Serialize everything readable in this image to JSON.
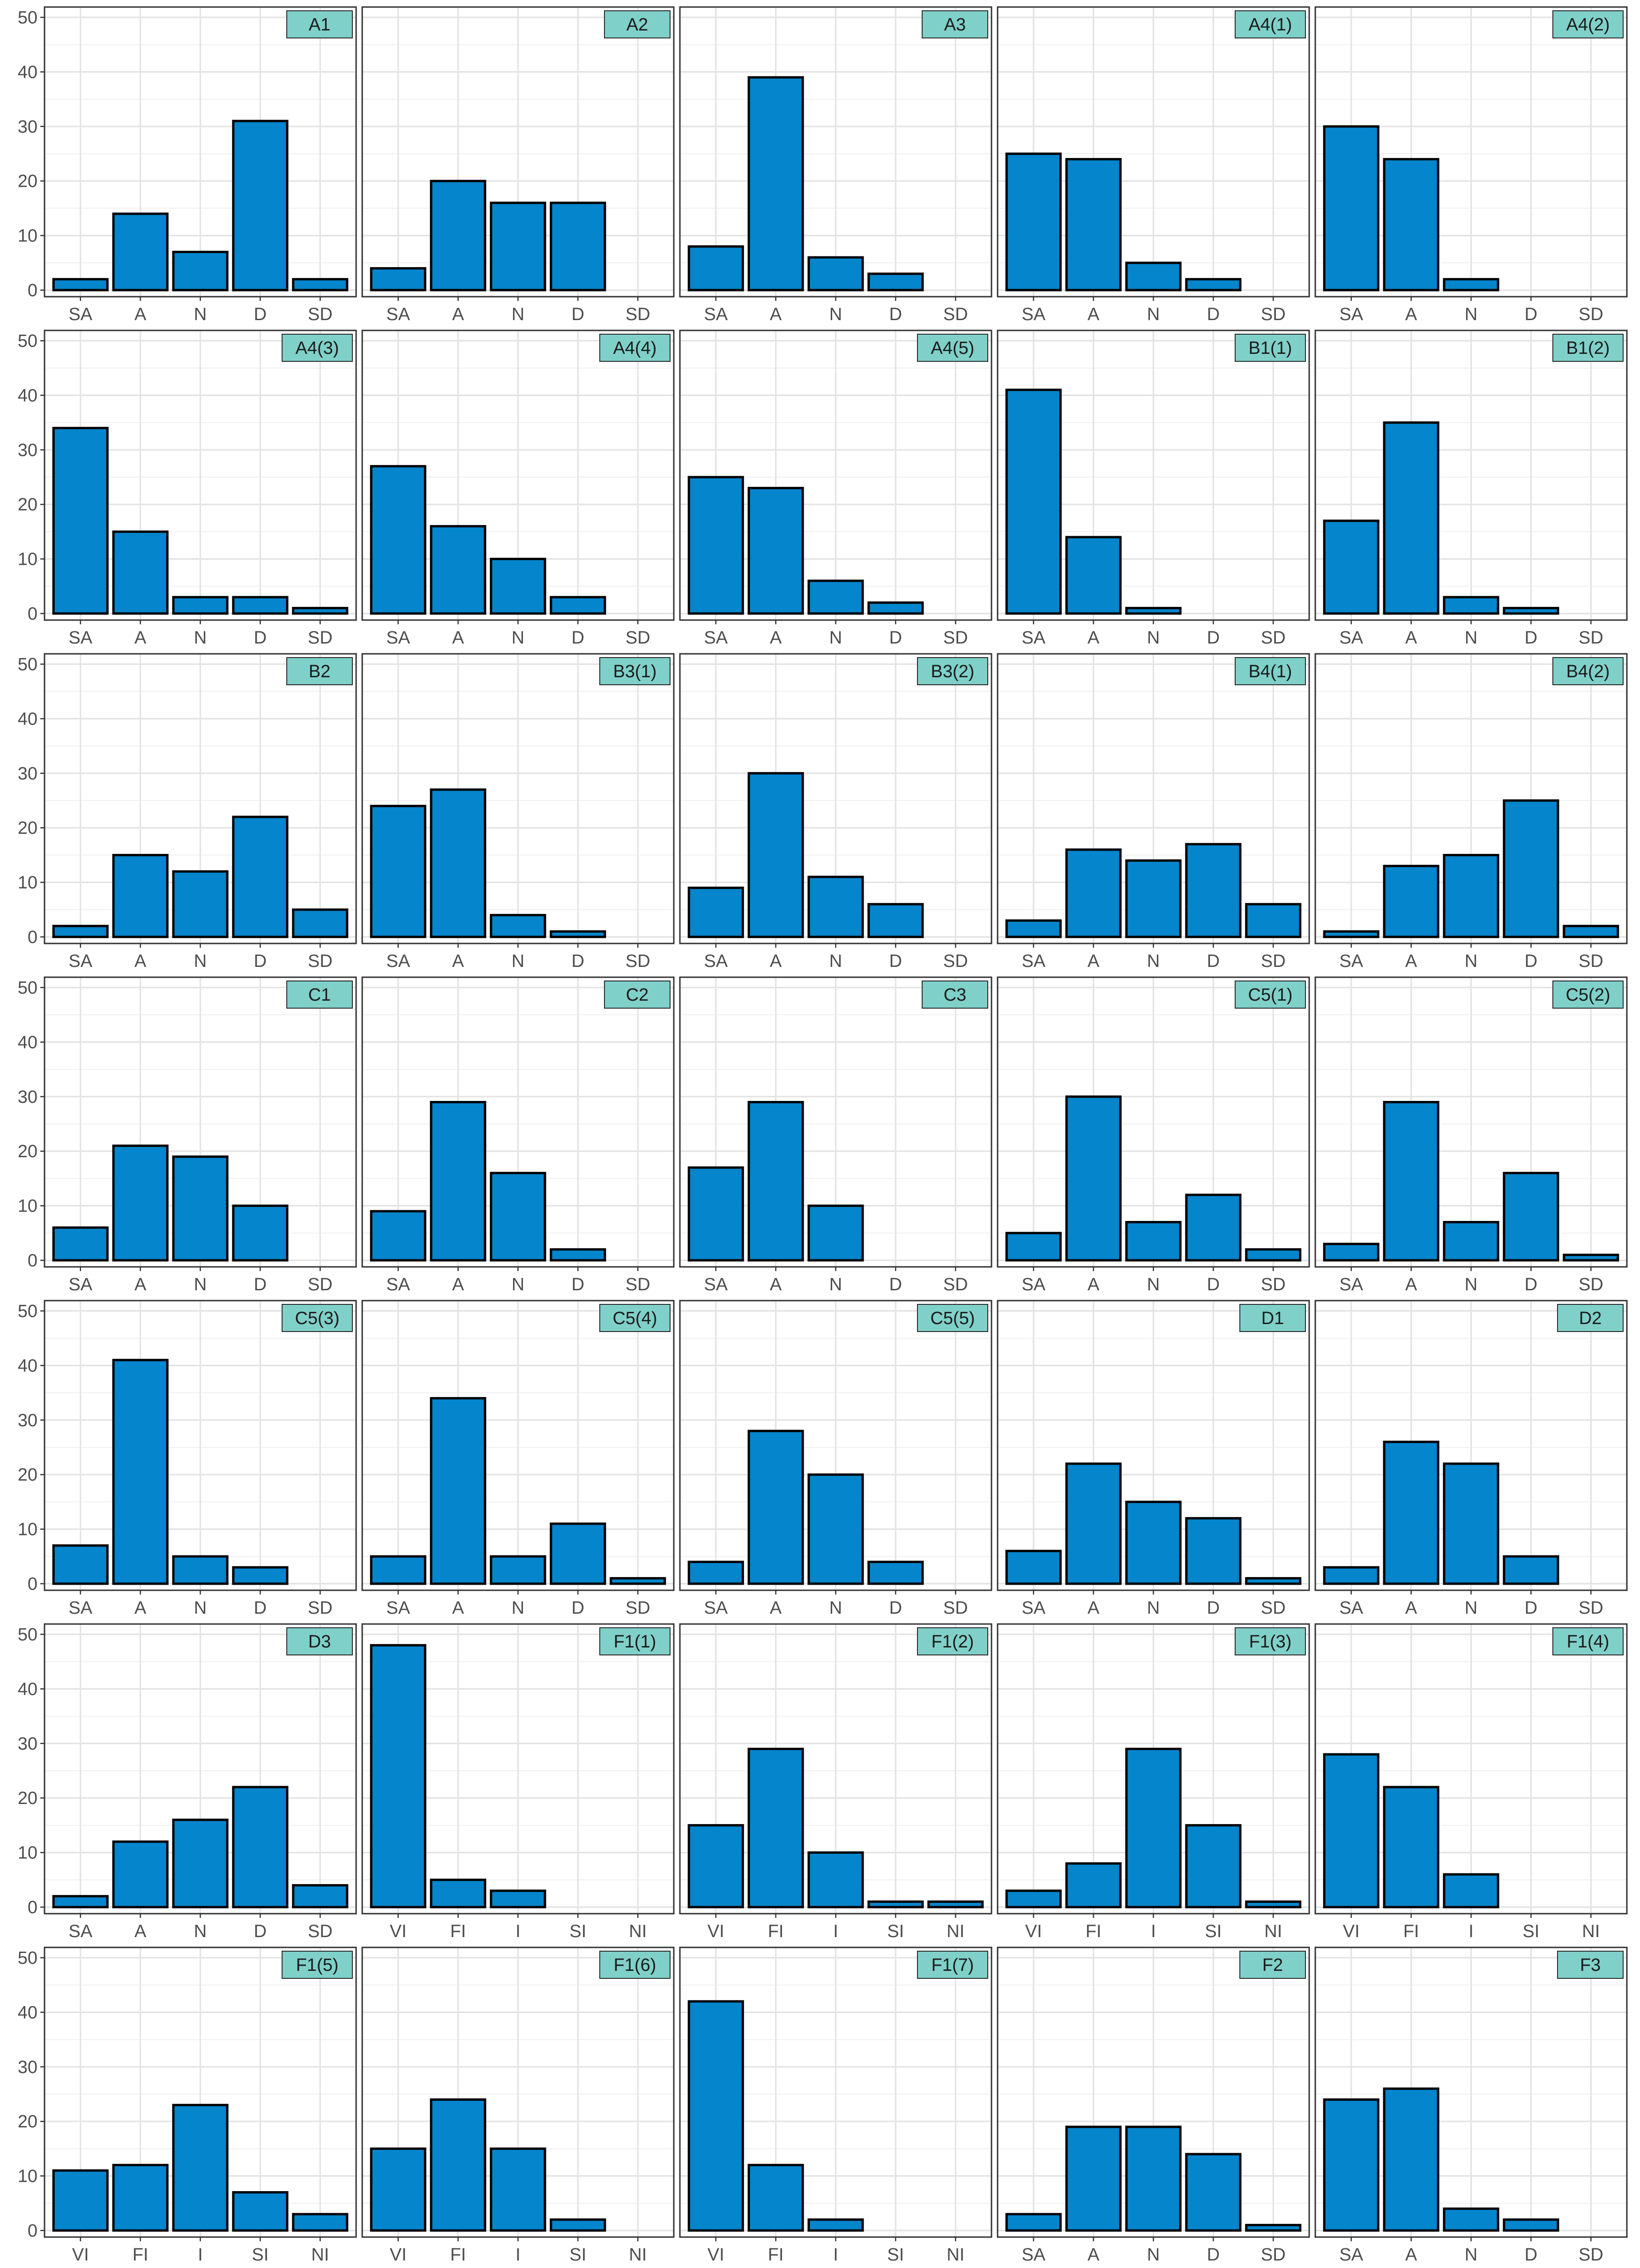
{
  "colors": {
    "bar": "#0485cc",
    "strip": "#7fd0c9",
    "grid": "#e3e3e3"
  },
  "chart_data": [
    {
      "type": "bar",
      "title": "A1",
      "categories": [
        "SA",
        "A",
        "N",
        "D",
        "SD"
      ],
      "values": [
        2,
        14,
        7,
        31,
        2
      ],
      "ylim": [
        0,
        50
      ],
      "yticks": [
        0,
        10,
        20,
        30,
        40,
        50
      ],
      "grid": true
    },
    {
      "type": "bar",
      "title": "A2",
      "categories": [
        "SA",
        "A",
        "N",
        "D",
        "SD"
      ],
      "values": [
        4,
        20,
        16,
        16,
        0
      ],
      "ylim": [
        0,
        50
      ],
      "yticks": [
        0,
        10,
        20,
        30,
        40,
        50
      ],
      "grid": true
    },
    {
      "type": "bar",
      "title": "A3",
      "categories": [
        "SA",
        "A",
        "N",
        "D",
        "SD"
      ],
      "values": [
        8,
        39,
        6,
        3,
        0
      ],
      "ylim": [
        0,
        50
      ],
      "yticks": [
        0,
        10,
        20,
        30,
        40,
        50
      ],
      "grid": true
    },
    {
      "type": "bar",
      "title": "A4(1)",
      "categories": [
        "SA",
        "A",
        "N",
        "D",
        "SD"
      ],
      "values": [
        25,
        24,
        5,
        2,
        0
      ],
      "ylim": [
        0,
        50
      ],
      "yticks": [
        0,
        10,
        20,
        30,
        40,
        50
      ],
      "grid": true
    },
    {
      "type": "bar",
      "title": "A4(2)",
      "categories": [
        "SA",
        "A",
        "N",
        "D",
        "SD"
      ],
      "values": [
        30,
        24,
        2,
        0,
        0
      ],
      "ylim": [
        0,
        50
      ],
      "yticks": [
        0,
        10,
        20,
        30,
        40,
        50
      ],
      "grid": true
    },
    {
      "type": "bar",
      "title": "A4(3)",
      "categories": [
        "SA",
        "A",
        "N",
        "D",
        "SD"
      ],
      "values": [
        34,
        15,
        3,
        3,
        1
      ],
      "ylim": [
        0,
        50
      ],
      "yticks": [
        0,
        10,
        20,
        30,
        40,
        50
      ],
      "grid": true
    },
    {
      "type": "bar",
      "title": "A4(4)",
      "categories": [
        "SA",
        "A",
        "N",
        "D",
        "SD"
      ],
      "values": [
        27,
        16,
        10,
        3,
        0
      ],
      "ylim": [
        0,
        50
      ],
      "yticks": [
        0,
        10,
        20,
        30,
        40,
        50
      ],
      "grid": true
    },
    {
      "type": "bar",
      "title": "A4(5)",
      "categories": [
        "SA",
        "A",
        "N",
        "D",
        "SD"
      ],
      "values": [
        25,
        23,
        6,
        2,
        0
      ],
      "ylim": [
        0,
        50
      ],
      "yticks": [
        0,
        10,
        20,
        30,
        40,
        50
      ],
      "grid": true
    },
    {
      "type": "bar",
      "title": "B1(1)",
      "categories": [
        "SA",
        "A",
        "N",
        "D",
        "SD"
      ],
      "values": [
        41,
        14,
        1,
        0,
        0
      ],
      "ylim": [
        0,
        50
      ],
      "yticks": [
        0,
        10,
        20,
        30,
        40,
        50
      ],
      "grid": true
    },
    {
      "type": "bar",
      "title": "B1(2)",
      "categories": [
        "SA",
        "A",
        "N",
        "D",
        "SD"
      ],
      "values": [
        17,
        35,
        3,
        1,
        0
      ],
      "ylim": [
        0,
        50
      ],
      "yticks": [
        0,
        10,
        20,
        30,
        40,
        50
      ],
      "grid": true
    },
    {
      "type": "bar",
      "title": "B2",
      "categories": [
        "SA",
        "A",
        "N",
        "D",
        "SD"
      ],
      "values": [
        2,
        15,
        12,
        22,
        5
      ],
      "ylim": [
        0,
        50
      ],
      "yticks": [
        0,
        10,
        20,
        30,
        40,
        50
      ],
      "grid": true
    },
    {
      "type": "bar",
      "title": "B3(1)",
      "categories": [
        "SA",
        "A",
        "N",
        "D",
        "SD"
      ],
      "values": [
        24,
        27,
        4,
        1,
        0
      ],
      "ylim": [
        0,
        50
      ],
      "yticks": [
        0,
        10,
        20,
        30,
        40,
        50
      ],
      "grid": true
    },
    {
      "type": "bar",
      "title": "B3(2)",
      "categories": [
        "SA",
        "A",
        "N",
        "D",
        "SD"
      ],
      "values": [
        9,
        30,
        11,
        6,
        0
      ],
      "ylim": [
        0,
        50
      ],
      "yticks": [
        0,
        10,
        20,
        30,
        40,
        50
      ],
      "grid": true
    },
    {
      "type": "bar",
      "title": "B4(1)",
      "categories": [
        "SA",
        "A",
        "N",
        "D",
        "SD"
      ],
      "values": [
        3,
        16,
        14,
        17,
        6
      ],
      "ylim": [
        0,
        50
      ],
      "yticks": [
        0,
        10,
        20,
        30,
        40,
        50
      ],
      "grid": true
    },
    {
      "type": "bar",
      "title": "B4(2)",
      "categories": [
        "SA",
        "A",
        "N",
        "D",
        "SD"
      ],
      "values": [
        1,
        13,
        15,
        25,
        2
      ],
      "ylim": [
        0,
        50
      ],
      "yticks": [
        0,
        10,
        20,
        30,
        40,
        50
      ],
      "grid": true
    },
    {
      "type": "bar",
      "title": "C1",
      "categories": [
        "SA",
        "A",
        "N",
        "D",
        "SD"
      ],
      "values": [
        6,
        21,
        19,
        10,
        0
      ],
      "ylim": [
        0,
        50
      ],
      "yticks": [
        0,
        10,
        20,
        30,
        40,
        50
      ],
      "grid": true
    },
    {
      "type": "bar",
      "title": "C2",
      "categories": [
        "SA",
        "A",
        "N",
        "D",
        "SD"
      ],
      "values": [
        9,
        29,
        16,
        2,
        0
      ],
      "ylim": [
        0,
        50
      ],
      "yticks": [
        0,
        10,
        20,
        30,
        40,
        50
      ],
      "grid": true
    },
    {
      "type": "bar",
      "title": "C3",
      "categories": [
        "SA",
        "A",
        "N",
        "D",
        "SD"
      ],
      "values": [
        17,
        29,
        10,
        0,
        0
      ],
      "ylim": [
        0,
        50
      ],
      "yticks": [
        0,
        10,
        20,
        30,
        40,
        50
      ],
      "grid": true
    },
    {
      "type": "bar",
      "title": "C5(1)",
      "categories": [
        "SA",
        "A",
        "N",
        "D",
        "SD"
      ],
      "values": [
        5,
        30,
        7,
        12,
        2
      ],
      "ylim": [
        0,
        50
      ],
      "yticks": [
        0,
        10,
        20,
        30,
        40,
        50
      ],
      "grid": true
    },
    {
      "type": "bar",
      "title": "C5(2)",
      "categories": [
        "SA",
        "A",
        "N",
        "D",
        "SD"
      ],
      "values": [
        3,
        29,
        7,
        16,
        1
      ],
      "ylim": [
        0,
        50
      ],
      "yticks": [
        0,
        10,
        20,
        30,
        40,
        50
      ],
      "grid": true
    },
    {
      "type": "bar",
      "title": "C5(3)",
      "categories": [
        "SA",
        "A",
        "N",
        "D",
        "SD"
      ],
      "values": [
        7,
        41,
        5,
        3,
        0
      ],
      "ylim": [
        0,
        50
      ],
      "yticks": [
        0,
        10,
        20,
        30,
        40,
        50
      ],
      "grid": true
    },
    {
      "type": "bar",
      "title": "C5(4)",
      "categories": [
        "SA",
        "A",
        "N",
        "D",
        "SD"
      ],
      "values": [
        5,
        34,
        5,
        11,
        1
      ],
      "ylim": [
        0,
        50
      ],
      "yticks": [
        0,
        10,
        20,
        30,
        40,
        50
      ],
      "grid": true
    },
    {
      "type": "bar",
      "title": "C5(5)",
      "categories": [
        "SA",
        "A",
        "N",
        "D",
        "SD"
      ],
      "values": [
        4,
        28,
        20,
        4,
        0
      ],
      "ylim": [
        0,
        50
      ],
      "yticks": [
        0,
        10,
        20,
        30,
        40,
        50
      ],
      "grid": true
    },
    {
      "type": "bar",
      "title": "D1",
      "categories": [
        "SA",
        "A",
        "N",
        "D",
        "SD"
      ],
      "values": [
        6,
        22,
        15,
        12,
        1
      ],
      "ylim": [
        0,
        50
      ],
      "yticks": [
        0,
        10,
        20,
        30,
        40,
        50
      ],
      "grid": true
    },
    {
      "type": "bar",
      "title": "D2",
      "categories": [
        "SA",
        "A",
        "N",
        "D",
        "SD"
      ],
      "values": [
        3,
        26,
        22,
        5,
        0
      ],
      "ylim": [
        0,
        50
      ],
      "yticks": [
        0,
        10,
        20,
        30,
        40,
        50
      ],
      "grid": true
    },
    {
      "type": "bar",
      "title": "D3",
      "categories": [
        "SA",
        "A",
        "N",
        "D",
        "SD"
      ],
      "values": [
        2,
        12,
        16,
        22,
        4
      ],
      "ylim": [
        0,
        50
      ],
      "yticks": [
        0,
        10,
        20,
        30,
        40,
        50
      ],
      "grid": true
    },
    {
      "type": "bar",
      "title": "F1(1)",
      "categories": [
        "VI",
        "FI",
        "I",
        "SI",
        "NI"
      ],
      "values": [
        48,
        5,
        3,
        0,
        0
      ],
      "ylim": [
        0,
        50
      ],
      "yticks": [
        0,
        10,
        20,
        30,
        40,
        50
      ],
      "grid": true
    },
    {
      "type": "bar",
      "title": "F1(2)",
      "categories": [
        "VI",
        "FI",
        "I",
        "SI",
        "NI"
      ],
      "values": [
        15,
        29,
        10,
        1,
        1
      ],
      "ylim": [
        0,
        50
      ],
      "yticks": [
        0,
        10,
        20,
        30,
        40,
        50
      ],
      "grid": true
    },
    {
      "type": "bar",
      "title": "F1(3)",
      "categories": [
        "VI",
        "FI",
        "I",
        "SI",
        "NI"
      ],
      "values": [
        3,
        8,
        29,
        15,
        1
      ],
      "ylim": [
        0,
        50
      ],
      "yticks": [
        0,
        10,
        20,
        30,
        40,
        50
      ],
      "grid": true
    },
    {
      "type": "bar",
      "title": "F1(4)",
      "categories": [
        "VI",
        "FI",
        "I",
        "SI",
        "NI"
      ],
      "values": [
        28,
        22,
        6,
        0,
        0
      ],
      "ylim": [
        0,
        50
      ],
      "yticks": [
        0,
        10,
        20,
        30,
        40,
        50
      ],
      "grid": true
    },
    {
      "type": "bar",
      "title": "F1(5)",
      "categories": [
        "VI",
        "FI",
        "I",
        "SI",
        "NI"
      ],
      "values": [
        11,
        12,
        23,
        7,
        3
      ],
      "ylim": [
        0,
        50
      ],
      "yticks": [
        0,
        10,
        20,
        30,
        40,
        50
      ],
      "grid": true
    },
    {
      "type": "bar",
      "title": "F1(6)",
      "categories": [
        "VI",
        "FI",
        "I",
        "SI",
        "NI"
      ],
      "values": [
        15,
        24,
        15,
        2,
        0
      ],
      "ylim": [
        0,
        50
      ],
      "yticks": [
        0,
        10,
        20,
        30,
        40,
        50
      ],
      "grid": true
    },
    {
      "type": "bar",
      "title": "F1(7)",
      "categories": [
        "VI",
        "FI",
        "I",
        "SI",
        "NI"
      ],
      "values": [
        42,
        12,
        2,
        0,
        0
      ],
      "ylim": [
        0,
        50
      ],
      "yticks": [
        0,
        10,
        20,
        30,
        40,
        50
      ],
      "grid": true
    },
    {
      "type": "bar",
      "title": "F2",
      "categories": [
        "SA",
        "A",
        "N",
        "D",
        "SD"
      ],
      "values": [
        3,
        19,
        19,
        14,
        1
      ],
      "ylim": [
        0,
        50
      ],
      "yticks": [
        0,
        10,
        20,
        30,
        40,
        50
      ],
      "grid": true
    },
    {
      "type": "bar",
      "title": "F3",
      "categories": [
        "SA",
        "A",
        "N",
        "D",
        "SD"
      ],
      "values": [
        24,
        26,
        4,
        2,
        0
      ],
      "ylim": [
        0,
        50
      ],
      "yticks": [
        0,
        10,
        20,
        30,
        40,
        50
      ],
      "grid": true
    }
  ]
}
